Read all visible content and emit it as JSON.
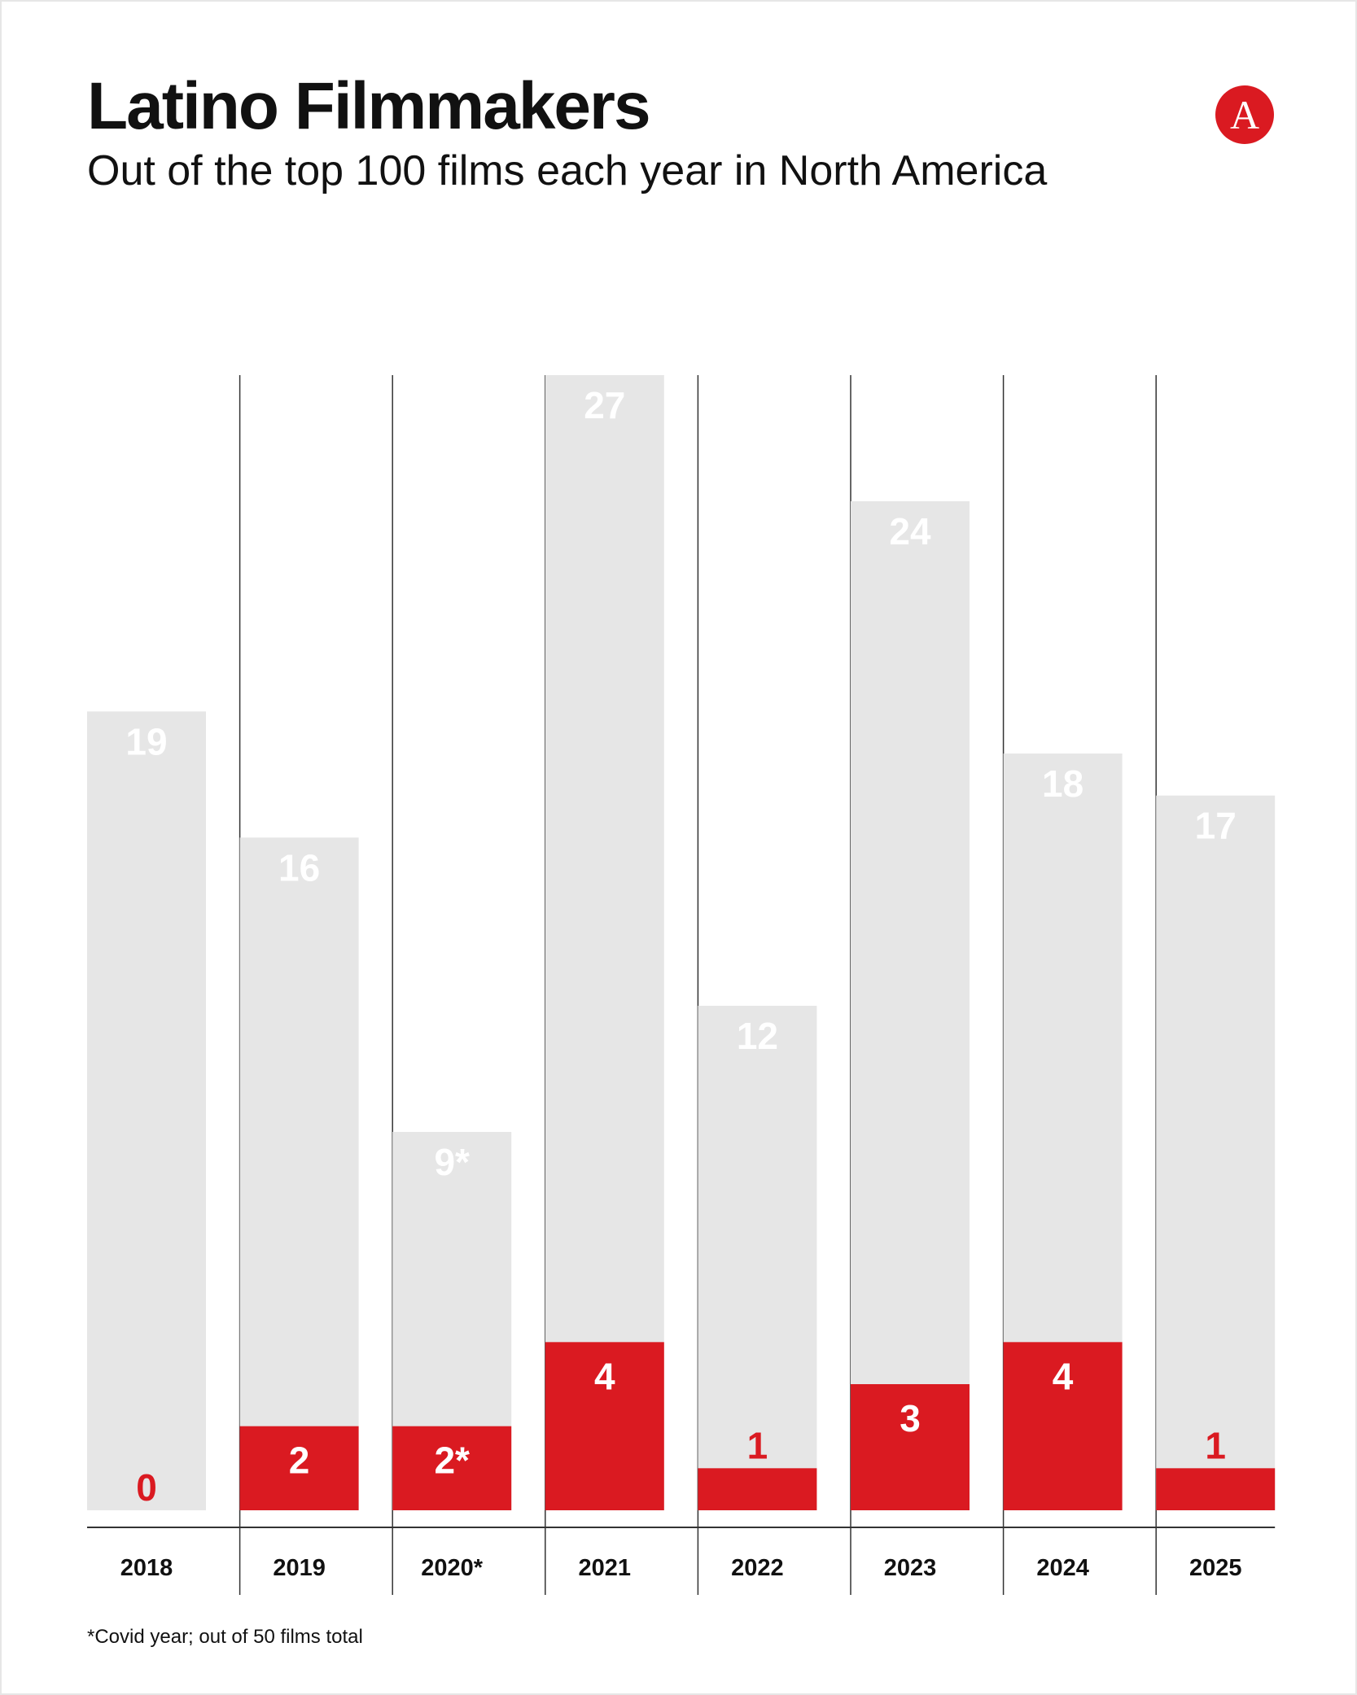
{
  "title": "Latino Filmmakers",
  "subtitle": "Out of the top 100 films each year in North America",
  "logo_letter": "A",
  "footnote": "*Covid year; out of 50 films total",
  "colors": {
    "total_bar": "#e6e6e6",
    "latino_bar": "#da1a21",
    "gridline": "#333333",
    "total_label": "#ffffff",
    "latino_label_inside": "#ffffff",
    "latino_label_outside": "#da1a21",
    "logo_bg": "#da1a21",
    "logo_fg": "#ffffff"
  },
  "chart_data": {
    "type": "bar",
    "title": "Latino Filmmakers",
    "subtitle": "Out of the top 100 films each year in North America",
    "xlabel": "",
    "ylabel": "",
    "categories": [
      "2018",
      "2019",
      "2020*",
      "2021",
      "2022",
      "2023",
      "2024",
      "2025"
    ],
    "series": [
      {
        "values": [
          19,
          16,
          9,
          27,
          12,
          24,
          18,
          17
        ],
        "labels": [
          "19",
          "16",
          "9*",
          "27",
          "12",
          "24",
          "18",
          "17"
        ]
      },
      {
        "values": [
          0,
          2,
          2,
          4,
          1,
          3,
          4,
          1
        ],
        "labels": [
          "0",
          "2",
          "2*",
          "4",
          "1",
          "3",
          "4",
          "1"
        ]
      }
    ],
    "ylim": [
      0,
      27
    ],
    "grid": "vertical separators between years",
    "legend": "none"
  }
}
